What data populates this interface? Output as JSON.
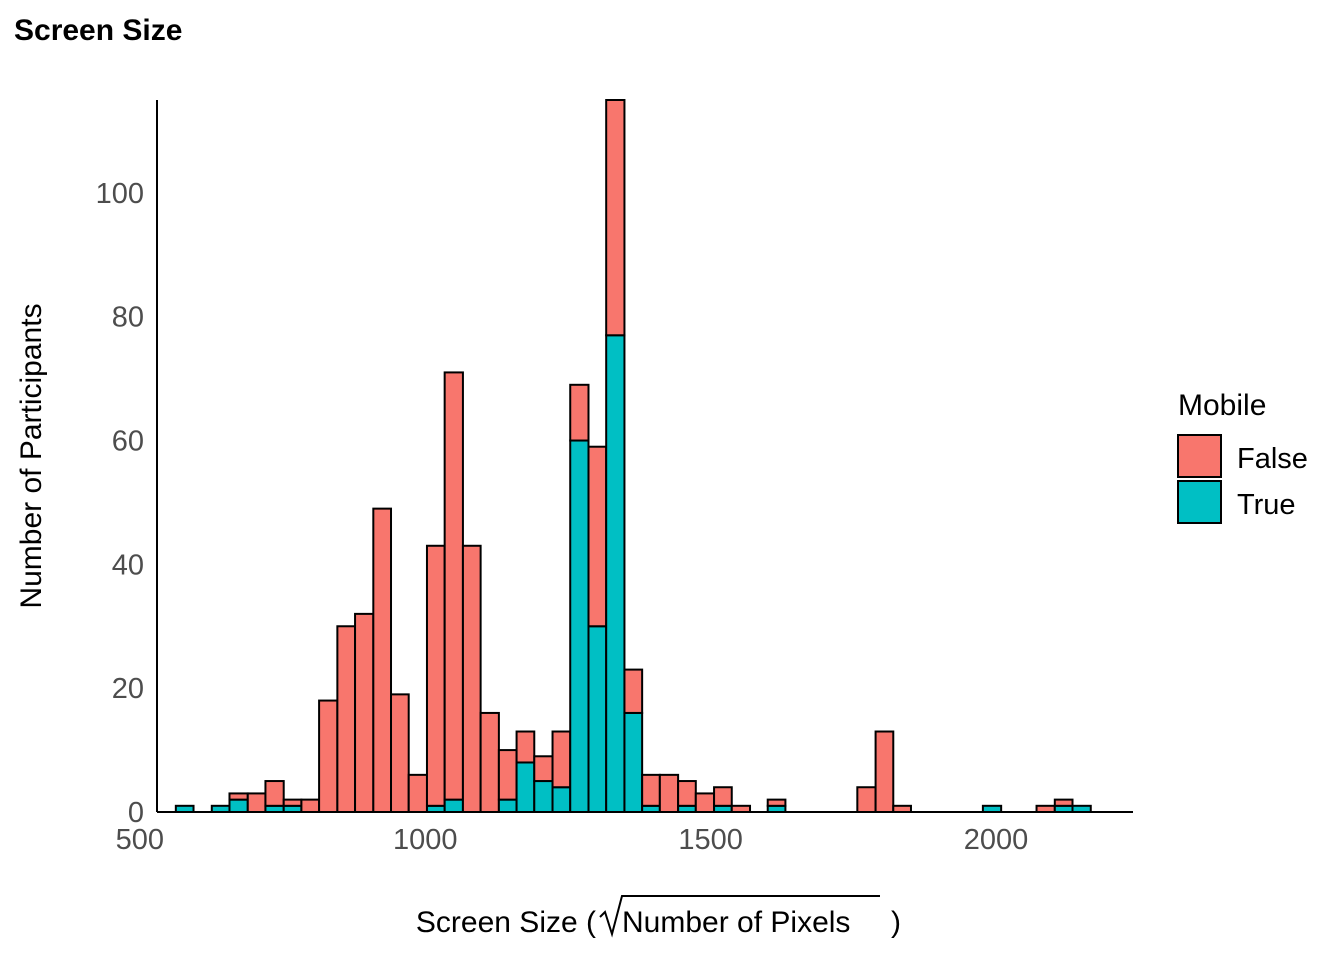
{
  "chart_data": {
    "type": "bar",
    "stacked": true,
    "title": "Screen Size",
    "xlabel_prefix": "Screen Size (",
    "xlabel_radicand": "Number of Pixels",
    "xlabel_suffix": ")",
    "ylabel": "Number of Participants",
    "xlim": [
      530,
      2240
    ],
    "ylim": [
      0,
      115
    ],
    "xticks": [
      500,
      1000,
      1500,
      2000
    ],
    "yticks": [
      0,
      20,
      40,
      60,
      80,
      100
    ],
    "grid": false,
    "legend": {
      "title": "Mobile",
      "position": "right",
      "entries": [
        {
          "label": "False",
          "color": "#F8766D"
        },
        {
          "label": "True",
          "color": "#00BFC4"
        }
      ]
    },
    "bins": [
      {
        "x0": 563,
        "x1": 594,
        "false": 0,
        "true": 1
      },
      {
        "x0": 626,
        "x1": 657,
        "false": 0,
        "true": 1
      },
      {
        "x0": 657,
        "x1": 689,
        "false": 1,
        "true": 2
      },
      {
        "x0": 689,
        "x1": 720,
        "false": 3,
        "true": 0
      },
      {
        "x0": 720,
        "x1": 752,
        "false": 4,
        "true": 1
      },
      {
        "x0": 752,
        "x1": 783,
        "false": 1,
        "true": 1
      },
      {
        "x0": 783,
        "x1": 814,
        "false": 2,
        "true": 0
      },
      {
        "x0": 814,
        "x1": 846,
        "false": 18,
        "true": 0
      },
      {
        "x0": 846,
        "x1": 877,
        "false": 30,
        "true": 0
      },
      {
        "x0": 877,
        "x1": 909,
        "false": 32,
        "true": 0
      },
      {
        "x0": 909,
        "x1": 940,
        "false": 49,
        "true": 0
      },
      {
        "x0": 940,
        "x1": 971,
        "false": 19,
        "true": 0
      },
      {
        "x0": 971,
        "x1": 1003,
        "false": 6,
        "true": 0
      },
      {
        "x0": 1003,
        "x1": 1034,
        "false": 42,
        "true": 1
      },
      {
        "x0": 1034,
        "x1": 1066,
        "false": 69,
        "true": 2
      },
      {
        "x0": 1066,
        "x1": 1097,
        "false": 43,
        "true": 0
      },
      {
        "x0": 1097,
        "x1": 1129,
        "false": 16,
        "true": 0
      },
      {
        "x0": 1129,
        "x1": 1160,
        "false": 8,
        "true": 2
      },
      {
        "x0": 1160,
        "x1": 1191,
        "false": 5,
        "true": 8
      },
      {
        "x0": 1191,
        "x1": 1223,
        "false": 4,
        "true": 5
      },
      {
        "x0": 1223,
        "x1": 1254,
        "false": 9,
        "true": 4
      },
      {
        "x0": 1254,
        "x1": 1286,
        "false": 9,
        "true": 60
      },
      {
        "x0": 1286,
        "x1": 1317,
        "false": 29,
        "true": 30
      },
      {
        "x0": 1317,
        "x1": 1349,
        "false": 38,
        "true": 77
      },
      {
        "x0": 1349,
        "x1": 1380,
        "false": 7,
        "true": 16
      },
      {
        "x0": 1380,
        "x1": 1411,
        "false": 5,
        "true": 1
      },
      {
        "x0": 1411,
        "x1": 1443,
        "false": 6,
        "true": 0
      },
      {
        "x0": 1443,
        "x1": 1474,
        "false": 4,
        "true": 1
      },
      {
        "x0": 1474,
        "x1": 1506,
        "false": 3,
        "true": 0
      },
      {
        "x0": 1506,
        "x1": 1537,
        "false": 3,
        "true": 1
      },
      {
        "x0": 1537,
        "x1": 1569,
        "false": 1,
        "true": 0
      },
      {
        "x0": 1600,
        "x1": 1631,
        "false": 1,
        "true": 1
      },
      {
        "x0": 1757,
        "x1": 1789,
        "false": 4,
        "true": 0
      },
      {
        "x0": 1789,
        "x1": 1820,
        "false": 13,
        "true": 0
      },
      {
        "x0": 1820,
        "x1": 1851,
        "false": 1,
        "true": 0
      },
      {
        "x0": 1977,
        "x1": 2009,
        "false": 0,
        "true": 1
      },
      {
        "x0": 2071,
        "x1": 2103,
        "false": 1,
        "true": 0
      },
      {
        "x0": 2103,
        "x1": 2134,
        "false": 1,
        "true": 1
      },
      {
        "x0": 2134,
        "x1": 2166,
        "false": 0,
        "true": 1
      }
    ]
  }
}
